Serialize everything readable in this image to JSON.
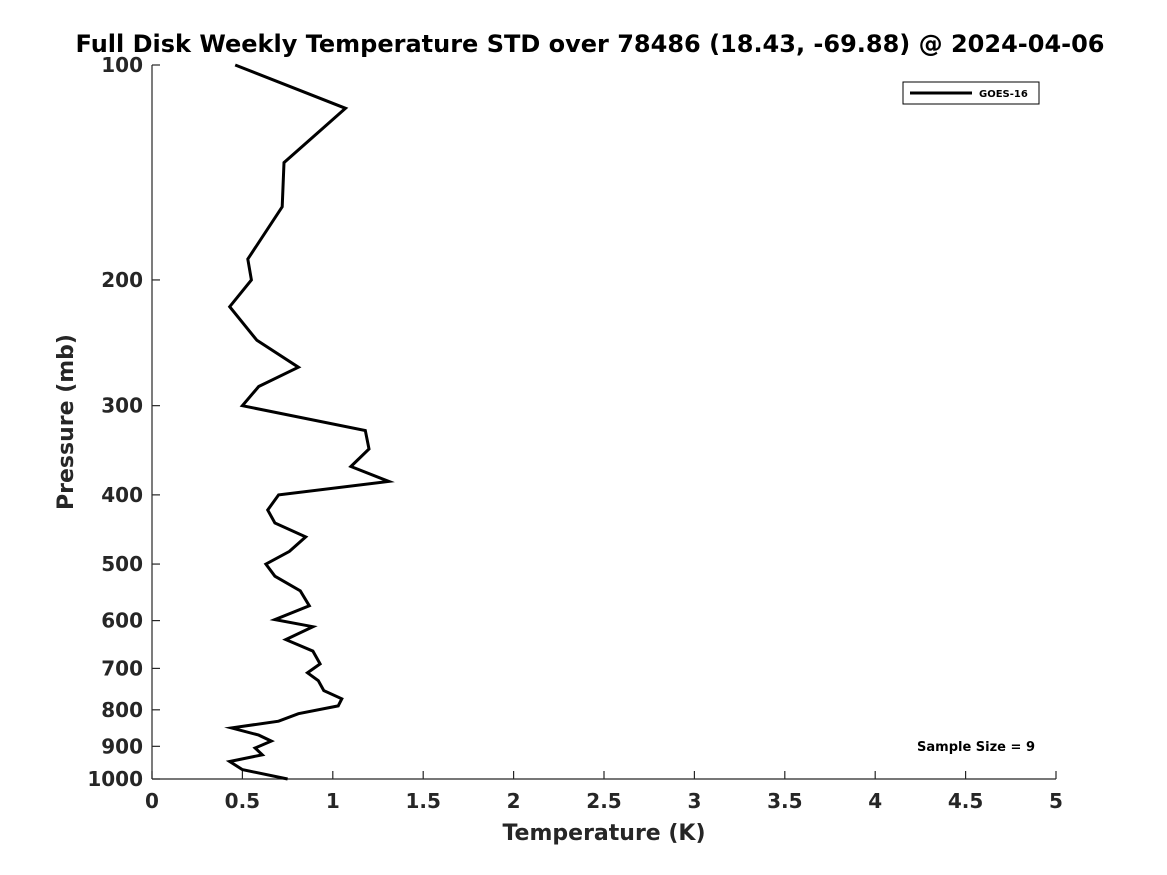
{
  "chart_data": {
    "type": "line",
    "title": "Full Disk Weekly Temperature STD over 78486 (18.43, -69.88) @ 2024-04-06",
    "xlabel": "Temperature (K)",
    "ylabel": "Pressure (mb)",
    "xlim": [
      0,
      5
    ],
    "ylim": [
      100,
      1000
    ],
    "y_scale": "log",
    "y_reversed": true,
    "grid": false,
    "legend_position": "top-right",
    "x_ticks": [
      0,
      0.5,
      1,
      1.5,
      2,
      2.5,
      3,
      3.5,
      4,
      4.5,
      5
    ],
    "x_tick_labels": [
      "0",
      "0.5",
      "1",
      "1.5",
      "2",
      "2.5",
      "3",
      "3.5",
      "4",
      "4.5",
      "5"
    ],
    "y_ticks": [
      100,
      200,
      300,
      400,
      500,
      600,
      700,
      800,
      900,
      1000
    ],
    "y_tick_labels": [
      "100",
      "200",
      "300",
      "400",
      "500",
      "600",
      "700",
      "800",
      "900",
      "1000"
    ],
    "series": [
      {
        "name": "GOES-16",
        "color": "#000000",
        "x": [
          0.46,
          1.07,
          0.73,
          0.72,
          0.53,
          0.55,
          0.43,
          0.58,
          0.81,
          0.59,
          0.5,
          1.18,
          1.2,
          1.1,
          1.31,
          0.7,
          0.64,
          0.68,
          0.85,
          0.76,
          0.63,
          0.68,
          0.82,
          0.87,
          0.68,
          0.89,
          0.74,
          0.89,
          0.93,
          0.86,
          0.92,
          0.95,
          1.05,
          1.03,
          0.81,
          0.7,
          0.44,
          0.59,
          0.66,
          0.57,
          0.61,
          0.43,
          0.5,
          0.75
        ],
        "y": [
          100,
          115,
          137,
          158,
          187,
          200,
          218,
          243,
          265,
          282,
          300,
          325,
          345,
          365,
          383,
          400,
          420,
          438,
          458,
          480,
          500,
          520,
          545,
          572,
          598,
          612,
          638,
          662,
          690,
          710,
          728,
          752,
          772,
          790,
          810,
          830,
          848,
          868,
          885,
          905,
          925,
          945,
          970,
          1000
        ]
      }
    ],
    "annotations": [
      "Sample Size = 9"
    ]
  }
}
